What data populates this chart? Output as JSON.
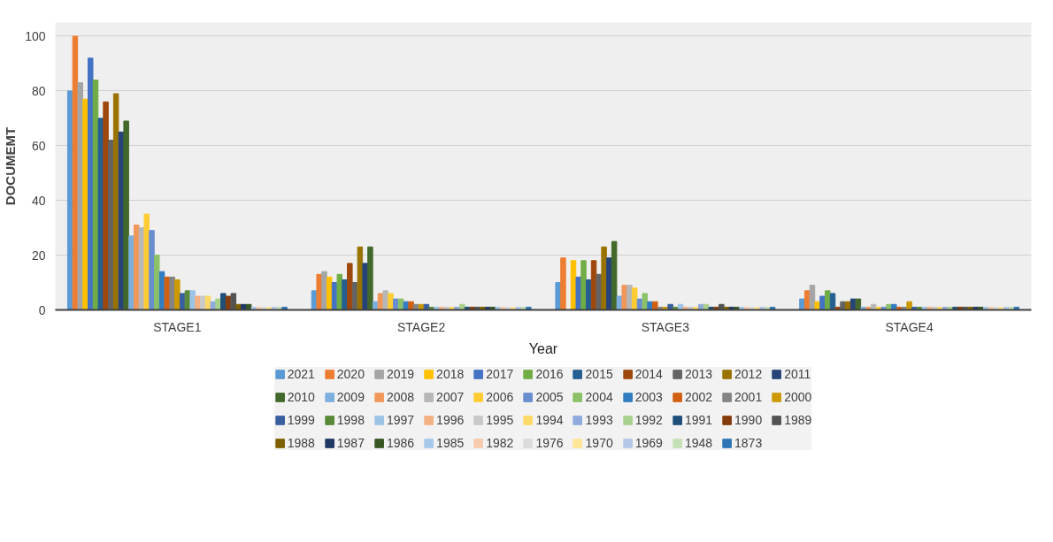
{
  "chart_data": {
    "type": "bar",
    "xlabel": "Year",
    "ylabel": "DOCUMEMT",
    "categories": [
      "STAGE1",
      "STAGE2",
      "STAGE3",
      "STAGE4"
    ],
    "ylim": [
      0,
      105
    ],
    "yticks": [
      0,
      20,
      40,
      60,
      80,
      100
    ],
    "grid": "y",
    "legend": "bottom",
    "series": [
      {
        "name": "2021",
        "color": "#5b9bd5",
        "values": [
          80,
          7,
          10,
          4
        ]
      },
      {
        "name": "2020",
        "color": "#ed7d31",
        "values": [
          100,
          13,
          19,
          7
        ]
      },
      {
        "name": "2019",
        "color": "#a5a5a5",
        "values": [
          83,
          14,
          0,
          9
        ]
      },
      {
        "name": "2018",
        "color": "#ffc000",
        "values": [
          77,
          12,
          18,
          3
        ]
      },
      {
        "name": "2017",
        "color": "#4472c4",
        "values": [
          92,
          10,
          12,
          5
        ]
      },
      {
        "name": "2016",
        "color": "#70ad47",
        "values": [
          84,
          13,
          18,
          7
        ]
      },
      {
        "name": "2015",
        "color": "#255e91",
        "values": [
          70,
          11,
          11,
          6
        ]
      },
      {
        "name": "2014",
        "color": "#9e480e",
        "values": [
          76,
          17,
          18,
          1
        ]
      },
      {
        "name": "2013",
        "color": "#636363",
        "values": [
          62,
          10,
          13,
          3
        ]
      },
      {
        "name": "2012",
        "color": "#997300",
        "values": [
          79,
          23,
          23,
          3
        ]
      },
      {
        "name": "2011",
        "color": "#264478",
        "values": [
          65,
          17,
          19,
          4
        ]
      },
      {
        "name": "2010",
        "color": "#43682b",
        "values": [
          69,
          23,
          25,
          4
        ]
      },
      {
        "name": "2009",
        "color": "#7cafdd",
        "values": [
          27,
          3,
          5,
          1
        ]
      },
      {
        "name": "2008",
        "color": "#f1975a",
        "values": [
          31,
          6,
          9,
          1
        ]
      },
      {
        "name": "2007",
        "color": "#b7b7b7",
        "values": [
          30,
          7,
          9,
          2
        ]
      },
      {
        "name": "2006",
        "color": "#ffcd33",
        "values": [
          35,
          6,
          8,
          1
        ]
      },
      {
        "name": "2005",
        "color": "#698ed0",
        "values": [
          29,
          4,
          4,
          1
        ]
      },
      {
        "name": "2004",
        "color": "#8cc168",
        "values": [
          20,
          4,
          6,
          2
        ]
      },
      {
        "name": "2003",
        "color": "#327dc2",
        "values": [
          14,
          3,
          3,
          2
        ]
      },
      {
        "name": "2002",
        "color": "#d26012",
        "values": [
          12,
          3,
          3,
          1
        ]
      },
      {
        "name": "2001",
        "color": "#848484",
        "values": [
          12,
          2,
          1,
          1
        ]
      },
      {
        "name": "2000",
        "color": "#cc9a00",
        "values": [
          11,
          2,
          1,
          3
        ]
      },
      {
        "name": "1999",
        "color": "#3a5fa0",
        "values": [
          6,
          2,
          2,
          1
        ]
      },
      {
        "name": "1998",
        "color": "#5a8a39",
        "values": [
          7,
          1,
          1,
          1
        ]
      },
      {
        "name": "1997",
        "color": "#9dc3e6",
        "values": [
          7,
          1,
          2,
          1
        ]
      },
      {
        "name": "1996",
        "color": "#f4b183",
        "values": [
          5,
          1,
          1,
          1
        ]
      },
      {
        "name": "1995",
        "color": "#c9c9c9",
        "values": [
          5,
          1,
          1,
          1
        ]
      },
      {
        "name": "1994",
        "color": "#ffd966",
        "values": [
          5,
          1,
          1,
          1
        ]
      },
      {
        "name": "1993",
        "color": "#8faadc",
        "values": [
          3,
          1,
          2,
          1
        ]
      },
      {
        "name": "1992",
        "color": "#a9d18e",
        "values": [
          4,
          2,
          2,
          1
        ]
      },
      {
        "name": "1991",
        "color": "#1f4e79",
        "values": [
          6,
          1,
          1,
          1
        ]
      },
      {
        "name": "1990",
        "color": "#843c0c",
        "values": [
          5,
          1,
          1,
          1
        ]
      },
      {
        "name": "1989",
        "color": "#525252",
        "values": [
          6,
          1,
          2,
          1
        ]
      },
      {
        "name": "1988",
        "color": "#7f6000",
        "values": [
          2,
          1,
          1,
          1
        ]
      },
      {
        "name": "1987",
        "color": "#203864",
        "values": [
          2,
          1,
          1,
          1
        ]
      },
      {
        "name": "1986",
        "color": "#385723",
        "values": [
          2,
          1,
          1,
          1
        ]
      },
      {
        "name": "1985",
        "color": "#a6c8ea",
        "values": [
          1,
          1,
          1,
          1
        ]
      },
      {
        "name": "1982",
        "color": "#f8cbad",
        "values": [
          1,
          1,
          1,
          1
        ]
      },
      {
        "name": "1976",
        "color": "#dbdbdb",
        "values": [
          1,
          1,
          1,
          1
        ]
      },
      {
        "name": "1970",
        "color": "#ffe699",
        "values": [
          1,
          1,
          1,
          1
        ]
      },
      {
        "name": "1969",
        "color": "#b4c7e7",
        "values": [
          1,
          1,
          1,
          1
        ]
      },
      {
        "name": "1948",
        "color": "#c5e0b4",
        "values": [
          1,
          1,
          1,
          1
        ]
      },
      {
        "name": "1873",
        "color": "#2e75b6",
        "values": [
          1,
          1,
          1,
          1
        ]
      }
    ]
  }
}
